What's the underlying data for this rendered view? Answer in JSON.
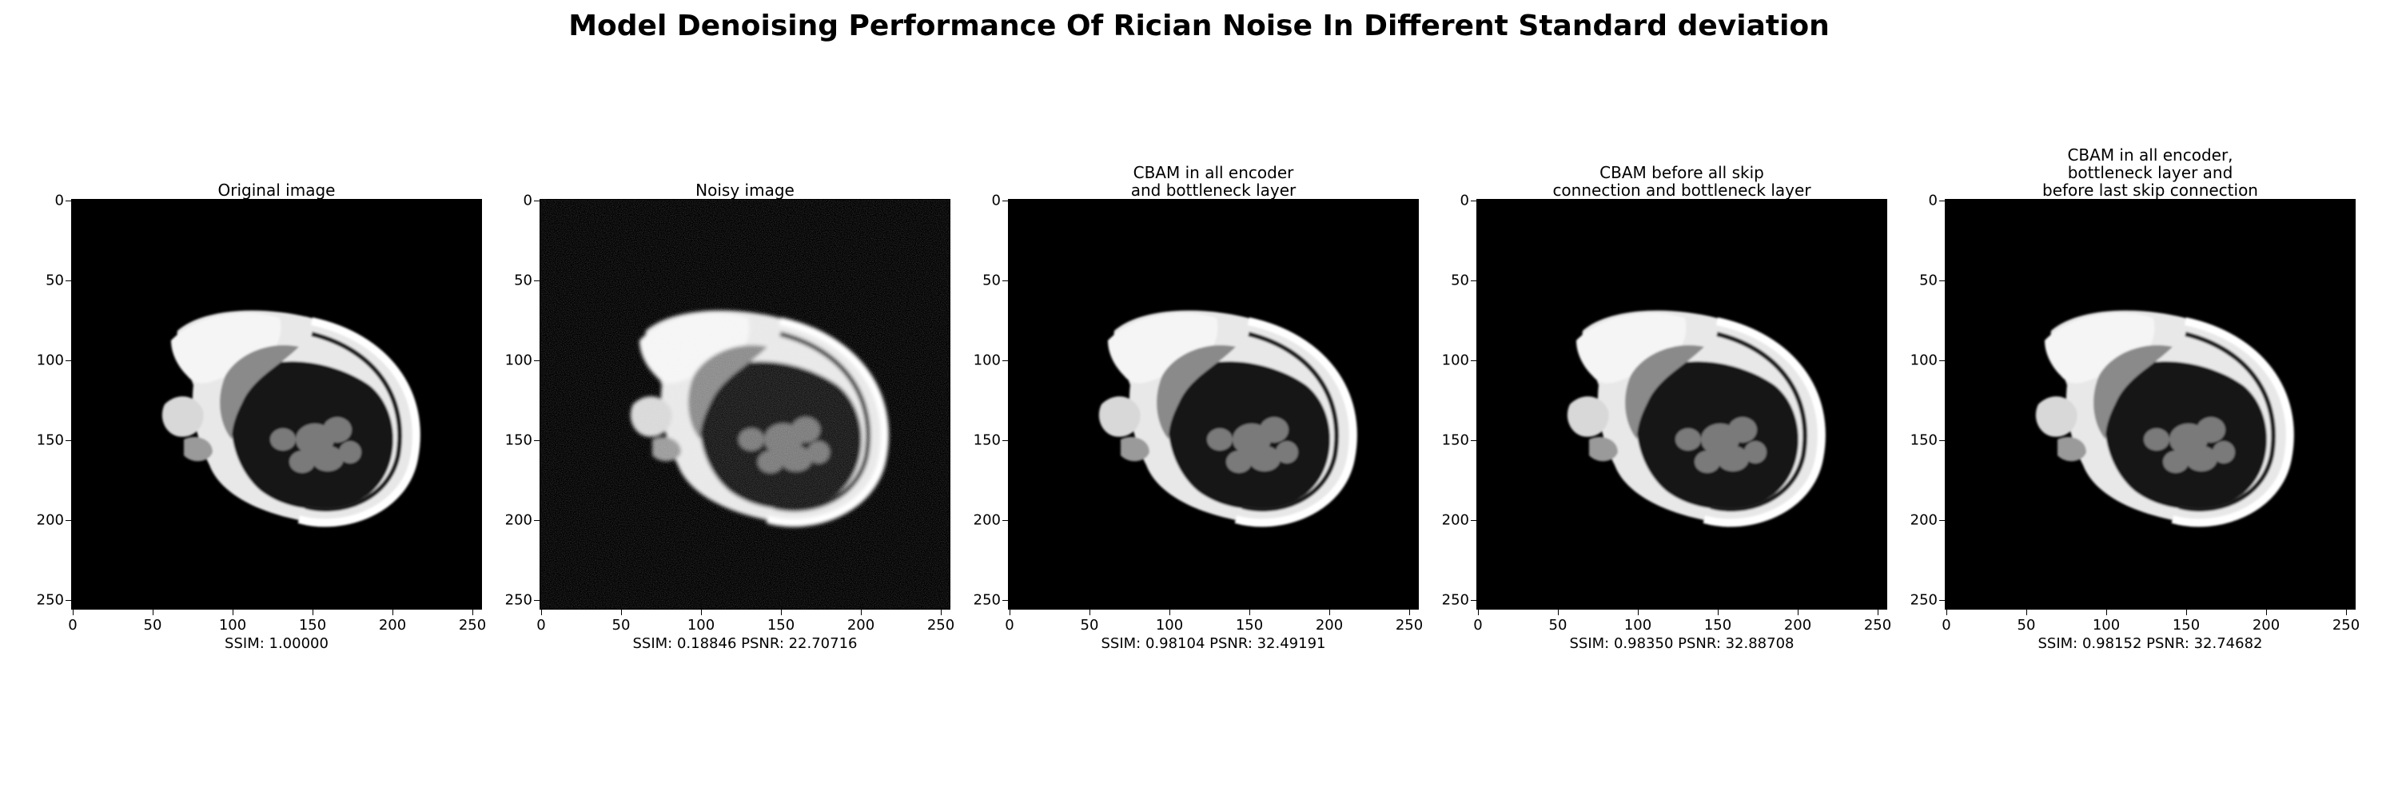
{
  "figure": {
    "title": "Model Denoising Performance Of Rician Noise In Different Standard deviation"
  },
  "axis_ticks": {
    "y": [
      "0",
      "50",
      "100",
      "150",
      "200",
      "250"
    ],
    "x": [
      "0",
      "50",
      "100",
      "150",
      "200",
      "250"
    ]
  },
  "panels": [
    {
      "title": "Original image",
      "metric": "SSIM: 1.00000",
      "noise": 0
    },
    {
      "title": "Noisy image",
      "metric": "SSIM: 0.18846 PSNR: 22.70716",
      "noise": 1
    },
    {
      "title": "CBAM in all encoder\nand bottleneck layer",
      "metric": "SSIM: 0.98104 PSNR: 32.49191",
      "noise": 0
    },
    {
      "title": "CBAM before all skip\nconnection and bottleneck layer",
      "metric": "SSIM: 0.98350 PSNR: 32.88708",
      "noise": 0
    },
    {
      "title": "CBAM in all encoder,\nbottleneck layer and\nbefore last skip connection",
      "metric": "SSIM: 0.98152 PSNR: 32.74682",
      "noise": 0
    }
  ]
}
